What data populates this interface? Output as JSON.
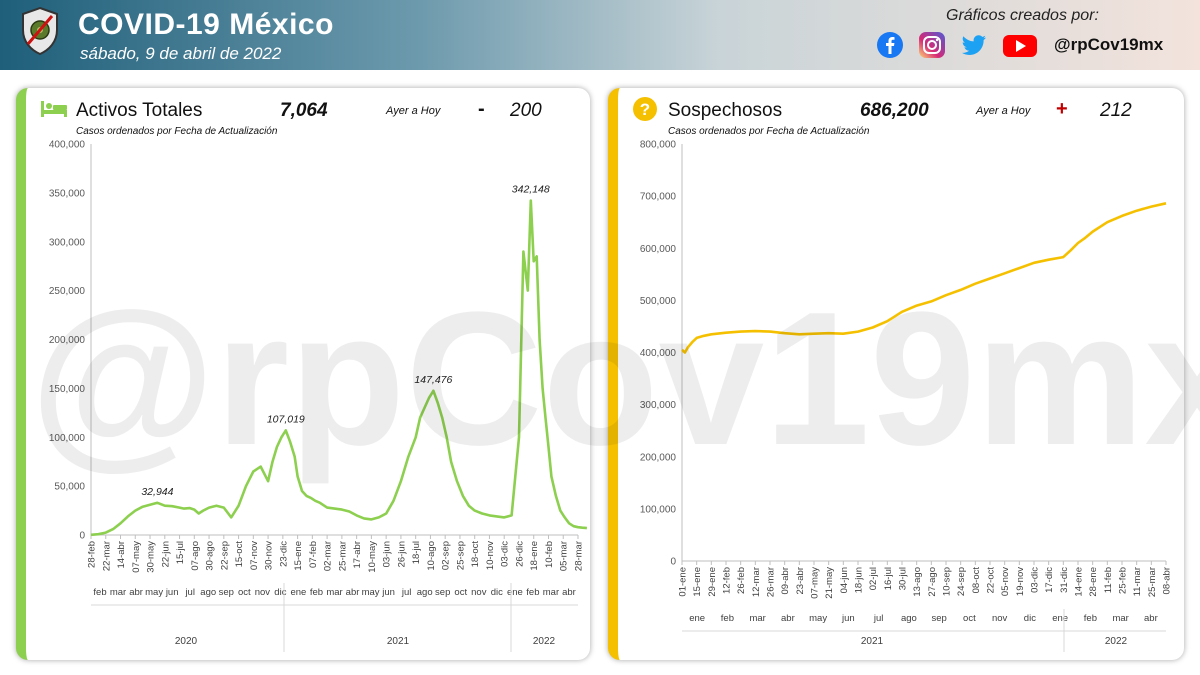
{
  "header": {
    "title": "COVID-19 México",
    "date": "sábado, 9 de abril de 2022",
    "credits_label": "Gráficos creados por:",
    "handle": "@rpCov19mx",
    "social_icons": [
      "facebook-icon",
      "instagram-icon",
      "twitter-icon",
      "youtube-icon"
    ],
    "watermark": "@rpCov19mx"
  },
  "left_panel": {
    "title": "Activos Totales",
    "value": "7,064",
    "compare_label": "Ayer a Hoy",
    "sign": "-",
    "delta": "200",
    "note": "Casos ordenados por Fecha de Actualización",
    "accent": "#8dcf4f"
  },
  "right_panel": {
    "title": "Sospechosos",
    "value": "686,200",
    "compare_label": "Ayer a Hoy",
    "sign": "+",
    "delta": "212",
    "note": "Casos ordenados por Fecha de Actualización",
    "accent": "#f5c000"
  },
  "chart_data": [
    {
      "type": "line",
      "title": "Activos Totales",
      "color": "#8dcf4f",
      "ylim": [
        0,
        400000
      ],
      "yticks": [
        0,
        50000,
        100000,
        150000,
        200000,
        250000,
        300000,
        350000,
        400000
      ],
      "ytick_labels": [
        "0",
        "50,000",
        "100,000",
        "150,000",
        "200,000",
        "250,000",
        "300,000",
        "350,000",
        "400,000"
      ],
      "x_dates": [
        "28-feb",
        "22-mar",
        "14-abr",
        "07-may",
        "30-may",
        "22-jun",
        "15-jul",
        "07-ago",
        "30-ago",
        "22-sep",
        "15-oct",
        "07-nov",
        "30-nov",
        "23-dic",
        "15-ene",
        "07-feb",
        "02-mar",
        "25-mar",
        "17-abr",
        "10-may",
        "03-jun",
        "26-jun",
        "18-jul",
        "10-ago",
        "02-sep",
        "25-sep",
        "18-oct",
        "10-nov",
        "03-dic",
        "26-dic",
        "18-ene",
        "10-feb",
        "05-mar",
        "28-mar"
      ],
      "x_months": [
        "feb",
        "mar",
        "abr",
        "may",
        "jun",
        "jul",
        "ago",
        "sep",
        "oct",
        "nov",
        "dic",
        "ene",
        "feb",
        "mar",
        "abr",
        "may",
        "jun",
        "jul",
        "ago",
        "sep",
        "oct",
        "nov",
        "dic",
        "ene",
        "feb",
        "mar",
        "abr"
      ],
      "x_years": [
        "2020",
        "2021",
        "2022"
      ],
      "series": [
        {
          "x": [
            0,
            0.5,
            1,
            1.5,
            2,
            2.5,
            3,
            3.5,
            4,
            4.5,
            5,
            5.5,
            6,
            6.3,
            6.7,
            7,
            7.3,
            7.6,
            8,
            8.5,
            9,
            9.5,
            10,
            10.5,
            11,
            11.5,
            12,
            12.3,
            12.6,
            12.9,
            13.2,
            13.5,
            13.8,
            14,
            14.3,
            14.6,
            14.9,
            15.2,
            15.5,
            16,
            16.5,
            17,
            17.5,
            18,
            18.5,
            19,
            19.5,
            20,
            20.5,
            21,
            21.5,
            22,
            22.3,
            22.6,
            22.9,
            23.2,
            23.5,
            23.8,
            24.1,
            24.4,
            24.8,
            25.2,
            25.6,
            26,
            26.5,
            27,
            27.5,
            28,
            28.5,
            29,
            29.3,
            29.6,
            29.8,
            30,
            30.2,
            30.4,
            30.6,
            30.8,
            31,
            31.2,
            31.5,
            31.8,
            32.1,
            32.4,
            32.7,
            33,
            33.3,
            33.6
          ],
          "y": [
            200,
            800,
            2500,
            6000,
            12000,
            19000,
            25000,
            29000,
            31000,
            32944,
            30000,
            29500,
            28000,
            27000,
            27500,
            26000,
            22000,
            25000,
            28000,
            30000,
            28000,
            18000,
            30000,
            50000,
            65000,
            70000,
            55000,
            75000,
            90000,
            100000,
            107019,
            95000,
            80000,
            60000,
            45000,
            40000,
            38000,
            35000,
            33000,
            28000,
            27000,
            26000,
            24000,
            20000,
            17000,
            16000,
            18000,
            22000,
            35000,
            55000,
            80000,
            100000,
            120000,
            130000,
            140000,
            147476,
            135000,
            120000,
            100000,
            75000,
            55000,
            40000,
            30000,
            25000,
            22000,
            20000,
            19000,
            18000,
            20000,
            100000,
            290000,
            250000,
            342148,
            280000,
            285000,
            200000,
            150000,
            120000,
            90000,
            60000,
            40000,
            25000,
            18000,
            12000,
            9000,
            8000,
            7500,
            7064
          ]
        }
      ],
      "annotations": [
        {
          "label": "32,944",
          "x": 4.5,
          "y": 32944
        },
        {
          "label": "107,019",
          "x": 13.2,
          "y": 107019
        },
        {
          "label": "147,476",
          "x": 23.2,
          "y": 147476
        },
        {
          "label": "342,148",
          "x": 29.8,
          "y": 342148
        }
      ],
      "grid": false
    },
    {
      "type": "line",
      "title": "Sospechosos",
      "color": "#f5c000",
      "ylim": [
        0,
        800000
      ],
      "yticks": [
        0,
        100000,
        200000,
        300000,
        400000,
        500000,
        600000,
        700000,
        800000
      ],
      "ytick_labels": [
        "0",
        "100,000",
        "200,000",
        "300,000",
        "400,000",
        "500,000",
        "600,000",
        "700,000",
        "800,000"
      ],
      "x_dates": [
        "01-ene",
        "15-ene",
        "29-ene",
        "12-feb",
        "26-feb",
        "12-mar",
        "26-mar",
        "09-abr",
        "23-abr",
        "07-may",
        "21-may",
        "04-jun",
        "18-jun",
        "02-jul",
        "16-jul",
        "30-jul",
        "13-ago",
        "27-ago",
        "10-sep",
        "24-sep",
        "08-oct",
        "22-oct",
        "05-nov",
        "19-nov",
        "03-dic",
        "17-dic",
        "31-dic",
        "14-ene",
        "28-ene",
        "11-feb",
        "25-feb",
        "11-mar",
        "25-mar",
        "08-abr"
      ],
      "x_months": [
        "ene",
        "feb",
        "mar",
        "abr",
        "may",
        "jun",
        "jul",
        "ago",
        "sep",
        "oct",
        "nov",
        "dic",
        "ene",
        "feb",
        "mar",
        "abr"
      ],
      "x_years": [
        "2021",
        "2022"
      ],
      "series": [
        {
          "x": [
            0,
            0.2,
            0.4,
            0.7,
            1,
            1.5,
            2,
            3,
            4,
            5,
            6,
            7,
            8,
            9,
            10,
            11,
            12,
            13,
            14,
            15,
            16,
            17,
            18,
            19,
            20,
            21,
            22,
            23,
            24,
            25,
            26,
            26.5,
            27,
            27.5,
            28,
            29,
            30,
            31,
            32,
            33
          ],
          "y": [
            405000,
            400000,
            410000,
            420000,
            428000,
            432000,
            435000,
            438000,
            440000,
            441000,
            440000,
            437000,
            435000,
            436000,
            437000,
            436000,
            440000,
            448000,
            460000,
            478000,
            490000,
            498000,
            510000,
            520000,
            532000,
            542000,
            552000,
            562000,
            572000,
            578000,
            583000,
            596000,
            610000,
            620000,
            632000,
            650000,
            662000,
            672000,
            680000,
            686200
          ]
        }
      ],
      "grid": false
    }
  ]
}
